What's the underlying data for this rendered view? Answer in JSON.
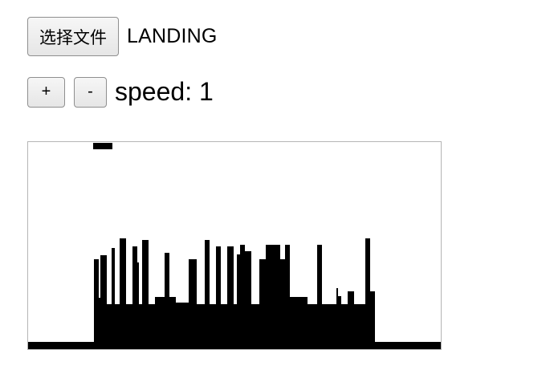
{
  "controls": {
    "file_button_label": "选择文件",
    "status": "LANDING",
    "plus_label": "+",
    "minus_label": "-",
    "speed_label": "speed: 1"
  },
  "game": {
    "foreground_color": "#000000",
    "background_color": "#ffffff",
    "speed": 1
  }
}
